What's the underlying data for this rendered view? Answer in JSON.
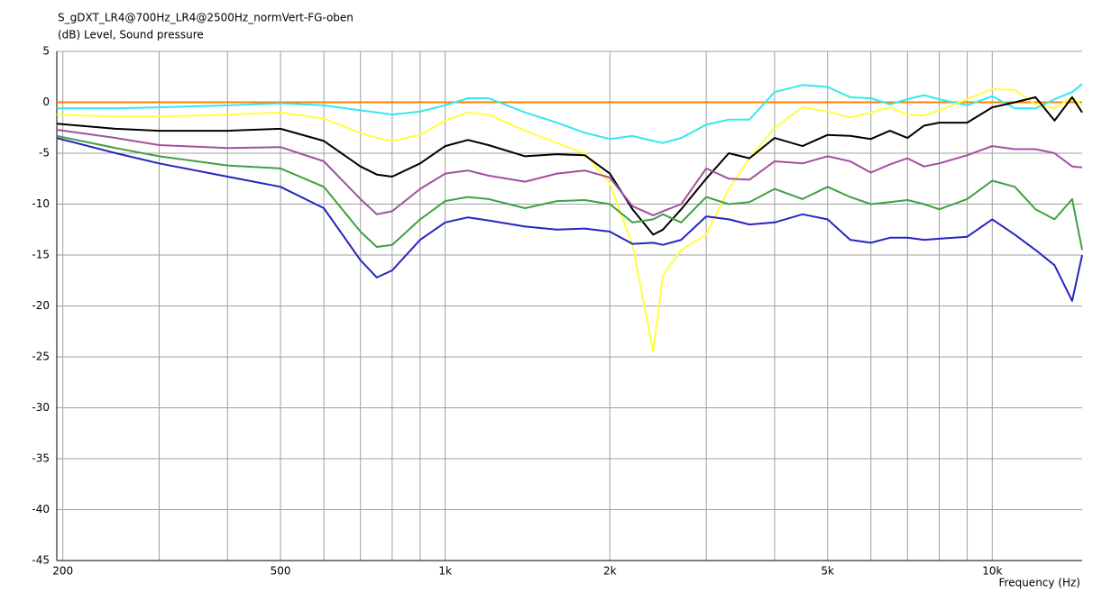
{
  "chart_data": {
    "type": "line",
    "title": "S_gDXT_LR4@700Hz_LR4@2500Hz_normVert-FG-oben",
    "y_label": "(dB)  Level, Sound pressure",
    "x_label": "Frequency  (Hz)",
    "x_scale": "log",
    "grid": true,
    "xlim": [
      195,
      14600
    ],
    "ylim": [
      -45,
      5
    ],
    "xticks": [
      200,
      500,
      {
        "value": 1000,
        "label": "1k"
      },
      {
        "value": 2000,
        "label": "2k"
      },
      {
        "value": 5000,
        "label": "5k"
      },
      {
        "value": 10000,
        "label": "10k"
      }
    ],
    "yticks": [
      5,
      0,
      -5,
      -10,
      -15,
      -20,
      -25,
      -30,
      -35,
      -40,
      -45
    ],
    "x": [
      195,
      250,
      300,
      400,
      500,
      600,
      700,
      750,
      800,
      900,
      1000,
      1100,
      1200,
      1400,
      1600,
      1800,
      2000,
      2200,
      2400,
      2500,
      2700,
      3000,
      3300,
      3600,
      4000,
      4500,
      5000,
      5500,
      6000,
      6500,
      7000,
      7500,
      8000,
      9000,
      10000,
      11000,
      12000,
      13000,
      14000,
      14600
    ],
    "series": [
      {
        "color": "#ff8000",
        "values": [
          0,
          0,
          0,
          0,
          0,
          0,
          0,
          0,
          0,
          0,
          0,
          0,
          0,
          0,
          0,
          0,
          0,
          0,
          0,
          0,
          0,
          0,
          0,
          0,
          0,
          0,
          0,
          0,
          0,
          0,
          0,
          0,
          0,
          0,
          0,
          0,
          0,
          0,
          0,
          0
        ]
      },
      {
        "color": "#33e8f0",
        "values": [
          -0.6,
          -0.6,
          -0.5,
          -0.3,
          -0.1,
          -0.3,
          -0.8,
          -1.0,
          -1.2,
          -0.9,
          -0.3,
          0.4,
          0.4,
          -1.0,
          -2.0,
          -3.0,
          -3.6,
          -3.3,
          -3.8,
          -4.0,
          -3.5,
          -2.2,
          -1.7,
          -1.7,
          1.0,
          1.7,
          1.5,
          0.5,
          0.4,
          -0.2,
          0.3,
          0.7,
          0.3,
          -0.3,
          0.6,
          -0.6,
          -0.6,
          0.3,
          1.0,
          1.8
        ]
      },
      {
        "color": "#ffff40",
        "values": [
          -1.2,
          -1.4,
          -1.4,
          -1.2,
          -1.0,
          -1.6,
          -3.0,
          -3.5,
          -3.8,
          -3.2,
          -1.8,
          -1.0,
          -1.2,
          -2.8,
          -4.0,
          -5.0,
          -8.0,
          -14.0,
          -24.5,
          -17.0,
          -14.5,
          -13.0,
          -8.5,
          -5.5,
          -2.5,
          -0.5,
          -0.9,
          -1.5,
          -1.0,
          -0.5,
          -1.2,
          -1.3,
          -0.8,
          0.3,
          1.3,
          1.2,
          -0.2,
          -0.6,
          0.5,
          -0.3
        ]
      },
      {
        "color": "#000000",
        "values": [
          -2.1,
          -2.6,
          -2.8,
          -2.8,
          -2.6,
          -3.8,
          -6.3,
          -7.1,
          -7.3,
          -6.0,
          -4.3,
          -3.7,
          -4.2,
          -5.3,
          -5.1,
          -5.2,
          -7.0,
          -10.5,
          -13.0,
          -12.5,
          -10.5,
          -7.5,
          -5.0,
          -5.5,
          -3.5,
          -4.3,
          -3.2,
          -3.3,
          -3.6,
          -2.8,
          -3.5,
          -2.3,
          -2.0,
          -2.0,
          -0.5,
          0.0,
          0.5,
          -1.8,
          0.5,
          -1.0
        ]
      },
      {
        "color": "#a050a0",
        "values": [
          -2.7,
          -3.5,
          -4.2,
          -4.5,
          -4.4,
          -5.8,
          -9.5,
          -11.0,
          -10.7,
          -8.5,
          -7.0,
          -6.7,
          -7.2,
          -7.8,
          -7.0,
          -6.7,
          -7.4,
          -10.2,
          -11.1,
          -10.7,
          -10.0,
          -6.5,
          -7.5,
          -7.6,
          -5.8,
          -6.0,
          -5.3,
          -5.8,
          -6.9,
          -6.1,
          -5.5,
          -6.3,
          -6.0,
          -5.2,
          -4.3,
          -4.6,
          -4.6,
          -5.0,
          -6.3,
          -6.4
        ]
      },
      {
        "color": "#40a040",
        "values": [
          -3.3,
          -4.5,
          -5.3,
          -6.2,
          -6.5,
          -8.3,
          -12.7,
          -14.2,
          -14.0,
          -11.5,
          -9.7,
          -9.3,
          -9.5,
          -10.4,
          -9.7,
          -9.6,
          -10.0,
          -11.8,
          -11.5,
          -11.0,
          -11.8,
          -9.3,
          -10.0,
          -9.8,
          -8.5,
          -9.5,
          -8.3,
          -9.3,
          -10.0,
          -9.8,
          -9.6,
          -10.0,
          -10.5,
          -9.5,
          -7.7,
          -8.3,
          -10.5,
          -11.5,
          -9.5,
          -14.5
        ]
      },
      {
        "color": "#2525c0",
        "values": [
          -3.5,
          -5.0,
          -6.0,
          -7.3,
          -8.3,
          -10.4,
          -15.5,
          -17.2,
          -16.5,
          -13.5,
          -11.8,
          -11.3,
          -11.6,
          -12.2,
          -12.5,
          -12.4,
          -12.7,
          -13.9,
          -13.8,
          -14.0,
          -13.5,
          -11.2,
          -11.5,
          -12.0,
          -11.8,
          -11.0,
          -11.5,
          -13.5,
          -13.8,
          -13.3,
          -13.3,
          -13.5,
          -13.4,
          -13.2,
          -11.5,
          -13.0,
          -14.5,
          -16.0,
          -19.5,
          -15.0
        ]
      }
    ]
  }
}
